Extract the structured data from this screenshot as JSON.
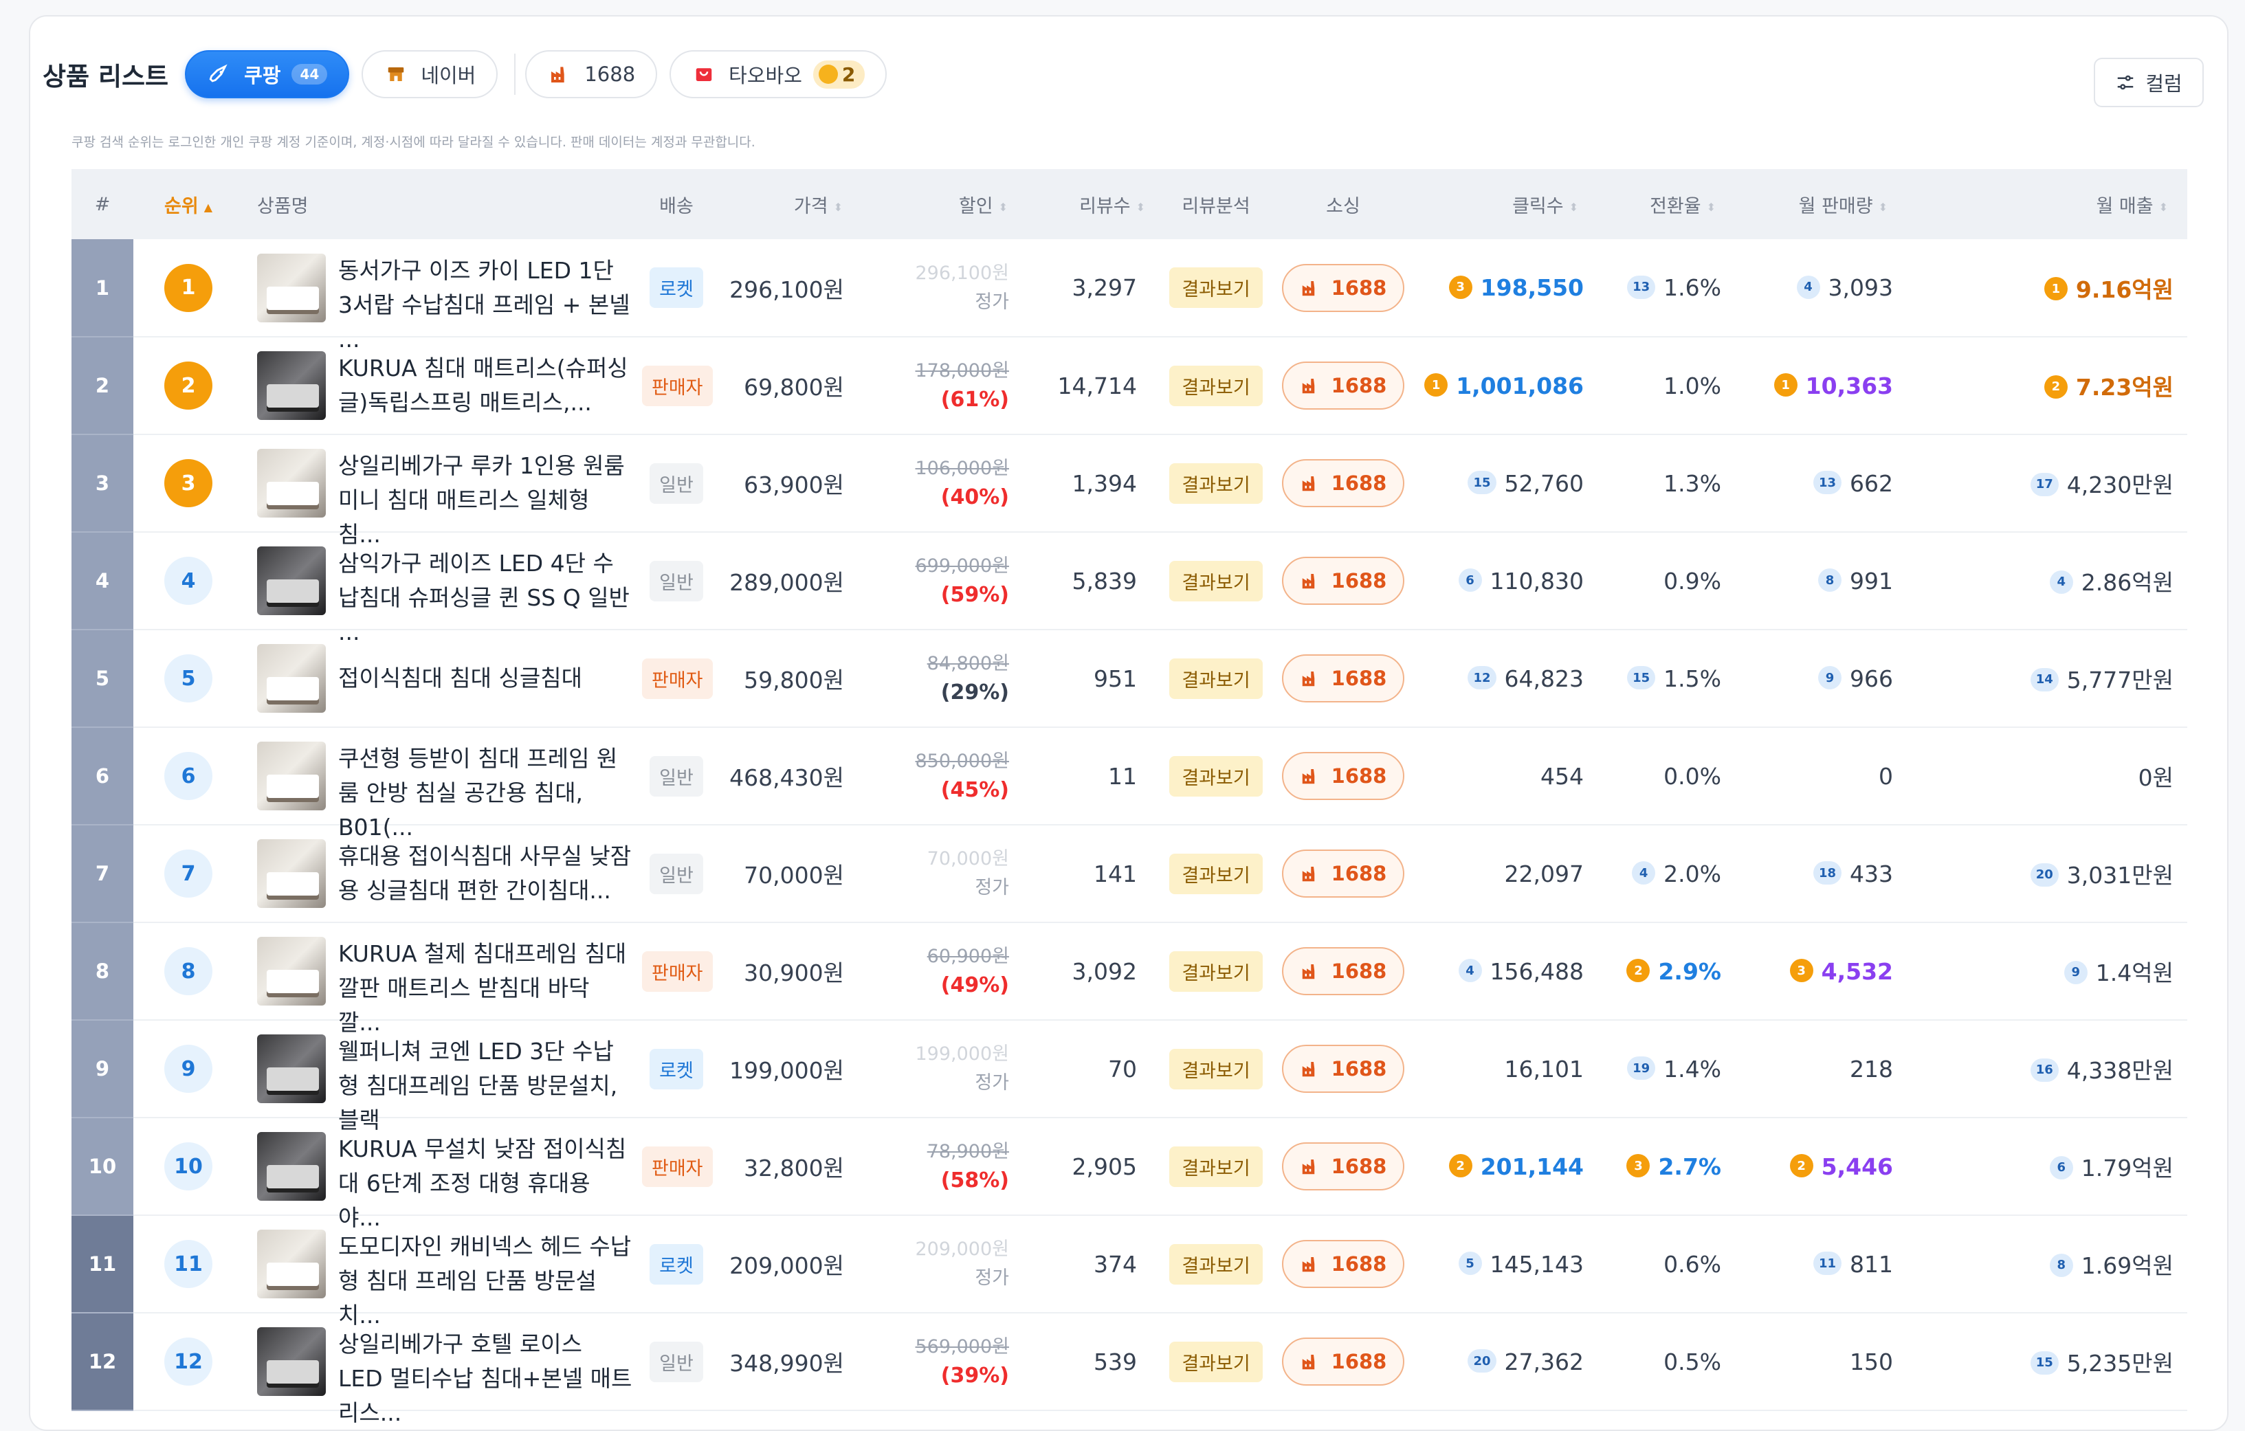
{
  "header": {
    "title": "상품 리스트",
    "platforms": [
      {
        "label": "쿠팡",
        "count": "44",
        "active": true
      },
      {
        "label": "네이버"
      },
      {
        "label": "1688"
      },
      {
        "label": "타오바오",
        "coin": "2"
      }
    ],
    "column_button": "컬럼"
  },
  "notice": "쿠팡 검색 순위는 로그인한 개인 쿠팡 계정 기준이며, 계정·시점에 따라 달라질 수 있습니다. 판매 데이터는 계정과 무관합니다.",
  "columns": {
    "num": "#",
    "rank": "순위",
    "name": "상품명",
    "ship": "배송",
    "price": "가격",
    "discount": "할인",
    "reviews": "리뷰수",
    "review_analysis": "리뷰분석",
    "sourcing": "소싱",
    "clicks": "클릭수",
    "conversion": "전환율",
    "monthly_sales": "월 판매량",
    "monthly_revenue": "월 매출"
  },
  "review_button": "결과보기",
  "source_label": "1688",
  "rows": [
    {
      "num": "1",
      "rank": "1",
      "name": "동서가구 이즈 카이 LED 1단 3서랍 수납침대 프레임 + 본넬 ...",
      "ship": "로켓",
      "ship_type": "rocket",
      "price": "296,100원",
      "orig": "296,100원",
      "orig_faint": true,
      "disc": "정가",
      "disc_type": "gray",
      "reviews": "3,297",
      "clicks_badge": "3",
      "clicks_badge_type": "g",
      "clicks": "198,550",
      "clicks_style": "blue",
      "conv_badge": "13",
      "conv_badge_type": "b",
      "conv": "1.6%",
      "conv_style": "",
      "sales_badge": "4",
      "sales_badge_type": "b",
      "sales": "3,093",
      "sales_style": "",
      "rev_badge": "1",
      "rev_badge_type": "g",
      "revenue": "9.16억원",
      "rev_style": "orange"
    },
    {
      "num": "2",
      "rank": "2",
      "name": "KURUA 침대 매트리스(슈퍼싱글)독립스프링 매트리스,...",
      "ship": "판매자",
      "ship_type": "seller",
      "price": "69,800원",
      "orig": "178,000원",
      "orig_faint": false,
      "disc": "(61%)",
      "disc_type": "red",
      "reviews": "14,714",
      "clicks_badge": "1",
      "clicks_badge_type": "g",
      "clicks": "1,001,086",
      "clicks_style": "blue",
      "conv_badge": "",
      "conv_badge_type": "",
      "conv": "1.0%",
      "conv_style": "",
      "sales_badge": "1",
      "sales_badge_type": "g",
      "sales": "10,363",
      "sales_style": "purple",
      "rev_badge": "2",
      "rev_badge_type": "g",
      "revenue": "7.23억원",
      "rev_style": "orange"
    },
    {
      "num": "3",
      "rank": "3",
      "name": "상일리베가구 루카 1인용 원룸 미니 침대 매트리스 일체형 침...",
      "ship": "일반",
      "ship_type": "normal",
      "price": "63,900원",
      "orig": "106,000원",
      "orig_faint": false,
      "disc": "(40%)",
      "disc_type": "red",
      "reviews": "1,394",
      "clicks_badge": "15",
      "clicks_badge_type": "b",
      "clicks": "52,760",
      "clicks_style": "",
      "conv_badge": "",
      "conv_badge_type": "",
      "conv": "1.3%",
      "conv_style": "",
      "sales_badge": "13",
      "sales_badge_type": "b",
      "sales": "662",
      "sales_style": "",
      "rev_badge": "17",
      "rev_badge_type": "b",
      "revenue": "4,230만원",
      "rev_style": ""
    },
    {
      "num": "4",
      "rank": "4",
      "name": "삼익가구 레이즈 LED 4단 수납침대 슈퍼싱글 퀸 SS Q 일반 ...",
      "ship": "일반",
      "ship_type": "normal",
      "price": "289,000원",
      "orig": "699,000원",
      "orig_faint": false,
      "disc": "(59%)",
      "disc_type": "red",
      "reviews": "5,839",
      "clicks_badge": "6",
      "clicks_badge_type": "b",
      "clicks": "110,830",
      "clicks_style": "",
      "conv_badge": "",
      "conv_badge_type": "",
      "conv": "0.9%",
      "conv_style": "",
      "sales_badge": "8",
      "sales_badge_type": "b",
      "sales": "991",
      "sales_style": "",
      "rev_badge": "4",
      "rev_badge_type": "b",
      "revenue": "2.86억원",
      "rev_style": ""
    },
    {
      "num": "5",
      "rank": "5",
      "name": "접이식침대 침대 싱글침대",
      "ship": "판매자",
      "ship_type": "seller",
      "price": "59,800원",
      "orig": "84,800원",
      "orig_faint": false,
      "disc": "(29%)",
      "disc_type": "plain",
      "reviews": "951",
      "clicks_badge": "12",
      "clicks_badge_type": "b",
      "clicks": "64,823",
      "clicks_style": "",
      "conv_badge": "15",
      "conv_badge_type": "b",
      "conv": "1.5%",
      "conv_style": "",
      "sales_badge": "9",
      "sales_badge_type": "b",
      "sales": "966",
      "sales_style": "",
      "rev_badge": "14",
      "rev_badge_type": "b",
      "revenue": "5,777만원",
      "rev_style": ""
    },
    {
      "num": "6",
      "rank": "6",
      "name": "쿠션형 등받이 침대 프레임 원룸 안방 침실 공간용 침대, B01(...",
      "ship": "일반",
      "ship_type": "normal",
      "price": "468,430원",
      "orig": "850,000원",
      "orig_faint": false,
      "disc": "(45%)",
      "disc_type": "red",
      "reviews": "11",
      "clicks_badge": "",
      "clicks_badge_type": "",
      "clicks": "454",
      "clicks_style": "",
      "conv_badge": "",
      "conv_badge_type": "",
      "conv": "0.0%",
      "conv_style": "",
      "sales_badge": "",
      "sales_badge_type": "",
      "sales": "0",
      "sales_style": "",
      "rev_badge": "",
      "rev_badge_type": "",
      "revenue": "0원",
      "rev_style": ""
    },
    {
      "num": "7",
      "rank": "7",
      "name": "휴대용 접이식침대 사무실 낮잠용 싱글침대 편한 간이침대...",
      "ship": "일반",
      "ship_type": "normal",
      "price": "70,000원",
      "orig": "70,000원",
      "orig_faint": true,
      "disc": "정가",
      "disc_type": "gray",
      "reviews": "141",
      "clicks_badge": "",
      "clicks_badge_type": "",
      "clicks": "22,097",
      "clicks_style": "",
      "conv_badge": "4",
      "conv_badge_type": "b",
      "conv": "2.0%",
      "conv_style": "",
      "sales_badge": "18",
      "sales_badge_type": "b",
      "sales": "433",
      "sales_style": "",
      "rev_badge": "20",
      "rev_badge_type": "b",
      "revenue": "3,031만원",
      "rev_style": ""
    },
    {
      "num": "8",
      "rank": "8",
      "name": "KURUA 철제 침대프레임 침대 깔판 매트리스 받침대 바닥 깔...",
      "ship": "판매자",
      "ship_type": "seller",
      "price": "30,900원",
      "orig": "60,900원",
      "orig_faint": false,
      "disc": "(49%)",
      "disc_type": "red",
      "reviews": "3,092",
      "clicks_badge": "4",
      "clicks_badge_type": "b",
      "clicks": "156,488",
      "clicks_style": "",
      "conv_badge": "2",
      "conv_badge_type": "g",
      "conv": "2.9%",
      "conv_style": "blue",
      "sales_badge": "3",
      "sales_badge_type": "g",
      "sales": "4,532",
      "sales_style": "purple",
      "rev_badge": "9",
      "rev_badge_type": "b",
      "revenue": "1.4억원",
      "rev_style": ""
    },
    {
      "num": "9",
      "rank": "9",
      "name": "웰퍼니쳐 코엔 LED 3단 수납형 침대프레임 단품 방문설치, 블랙",
      "ship": "로켓",
      "ship_type": "rocket",
      "price": "199,000원",
      "orig": "199,000원",
      "orig_faint": true,
      "disc": "정가",
      "disc_type": "gray",
      "reviews": "70",
      "clicks_badge": "",
      "clicks_badge_type": "",
      "clicks": "16,101",
      "clicks_style": "",
      "conv_badge": "19",
      "conv_badge_type": "b",
      "conv": "1.4%",
      "conv_style": "",
      "sales_badge": "",
      "sales_badge_type": "",
      "sales": "218",
      "sales_style": "",
      "rev_badge": "16",
      "rev_badge_type": "b",
      "revenue": "4,338만원",
      "rev_style": ""
    },
    {
      "num": "10",
      "rank": "10",
      "name": "KURUA 무설치 낮잠 접이식침대 6단계 조정 대형 휴대용 야...",
      "ship": "판매자",
      "ship_type": "seller",
      "price": "32,800원",
      "orig": "78,900원",
      "orig_faint": false,
      "disc": "(58%)",
      "disc_type": "red",
      "reviews": "2,905",
      "clicks_badge": "2",
      "clicks_badge_type": "g",
      "clicks": "201,144",
      "clicks_style": "blue",
      "conv_badge": "3",
      "conv_badge_type": "g",
      "conv": "2.7%",
      "conv_style": "blue",
      "sales_badge": "2",
      "sales_badge_type": "g",
      "sales": "5,446",
      "sales_style": "purple",
      "rev_badge": "6",
      "rev_badge_type": "b",
      "revenue": "1.79억원",
      "rev_style": ""
    },
    {
      "num": "11",
      "rank": "11",
      "name": "도모디자인 캐비넥스 헤드 수납형 침대 프레임 단품 방문설치...",
      "ship": "로켓",
      "ship_type": "rocket",
      "price": "209,000원",
      "orig": "209,000원",
      "orig_faint": true,
      "disc": "정가",
      "disc_type": "gray",
      "reviews": "374",
      "clicks_badge": "5",
      "clicks_badge_type": "b",
      "clicks": "145,143",
      "clicks_style": "",
      "conv_badge": "",
      "conv_badge_type": "",
      "conv": "0.6%",
      "conv_style": "",
      "sales_badge": "11",
      "sales_badge_type": "b",
      "sales": "811",
      "sales_style": "",
      "rev_badge": "8",
      "rev_badge_type": "b",
      "revenue": "1.69억원",
      "rev_style": ""
    },
    {
      "num": "12",
      "rank": "12",
      "name": "상일리베가구 호텔 로이스 LED 멀티수납 침대+본넬 매트리스...",
      "ship": "일반",
      "ship_type": "normal",
      "price": "348,990원",
      "orig": "569,000원",
      "orig_faint": false,
      "disc": "(39%)",
      "disc_type": "red",
      "reviews": "539",
      "clicks_badge": "20",
      "clicks_badge_type": "b",
      "clicks": "27,362",
      "clicks_style": "",
      "conv_badge": "",
      "conv_badge_type": "",
      "conv": "0.5%",
      "conv_style": "",
      "sales_badge": "",
      "sales_badge_type": "",
      "sales": "150",
      "sales_style": "",
      "rev_badge": "15",
      "rev_badge_type": "b",
      "revenue": "5,235만원",
      "rev_style": ""
    }
  ]
}
